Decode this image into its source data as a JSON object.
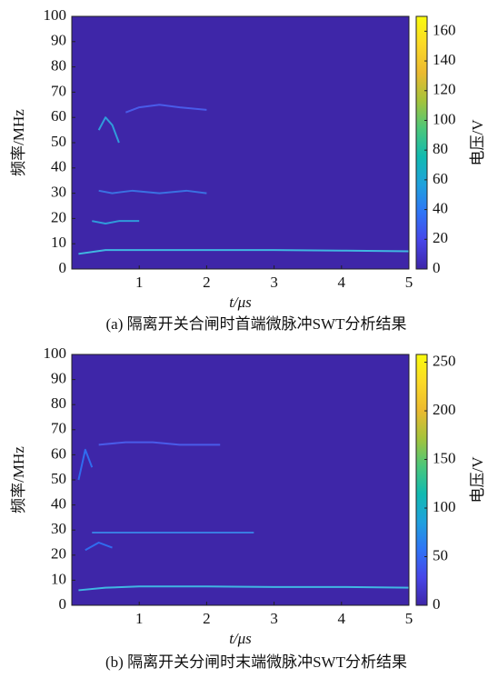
{
  "chart_data": [
    {
      "type": "heatmap",
      "title": "(a) 隔离开关合闸时首端微脉冲SWT分析结果",
      "xlabel": "t/μs",
      "ylabel": "频率/MHz",
      "colorbar_label": "电压/V",
      "xlim": [
        0,
        5
      ],
      "ylim": [
        0,
        100
      ],
      "xticks": [
        1,
        2,
        3,
        4,
        5
      ],
      "yticks": [
        0,
        10,
        20,
        30,
        40,
        50,
        60,
        70,
        80,
        90,
        100
      ],
      "clim": [
        0,
        170
      ],
      "cticks": [
        0,
        20,
        40,
        60,
        80,
        100,
        120,
        140,
        160
      ],
      "colormap": [
        "#3e26a8",
        "#4745e8",
        "#2f74f6",
        "#1fa1dd",
        "#11bab0",
        "#4bc77a",
        "#a5c33b",
        "#ecba30",
        "#fbd927",
        "#f9fb0e"
      ],
      "ridges": [
        {
          "x": [
            0.1,
            0.5,
            1,
            2,
            3,
            4,
            5
          ],
          "values": [
            6,
            7.5,
            7.5,
            7.5,
            7.5,
            7.3,
            7
          ],
          "color": "#40c8e8"
        },
        {
          "x": [
            0.3,
            0.5,
            0.7,
            1.0
          ],
          "values": [
            19,
            18,
            19,
            19
          ],
          "color": "#2fa8e0"
        },
        {
          "x": [
            0.4,
            0.6,
            0.9,
            1.3,
            1.7,
            2.0
          ],
          "values": [
            31,
            30,
            31,
            30,
            31,
            30
          ],
          "color": "#3a7ae8"
        },
        {
          "x": [
            0.4,
            0.5,
            0.6,
            0.7
          ],
          "values": [
            55,
            60,
            57,
            50
          ],
          "color": "#2fa8e0"
        },
        {
          "x": [
            0.8,
            1.0,
            1.3,
            1.6,
            2.0
          ],
          "values": [
            62,
            64,
            65,
            64,
            63
          ],
          "color": "#4a62f0"
        }
      ]
    },
    {
      "type": "heatmap",
      "title": "(b) 隔离开关分闸时末端微脉冲SWT分析结果",
      "xlabel": "t/μs",
      "ylabel": "频率/MHz",
      "colorbar_label": "电压/V",
      "xlim": [
        0,
        5
      ],
      "ylim": [
        0,
        100
      ],
      "xticks": [
        1,
        2,
        3,
        4,
        5
      ],
      "yticks": [
        0,
        10,
        20,
        30,
        40,
        50,
        60,
        70,
        80,
        90,
        100
      ],
      "clim": [
        0,
        258
      ],
      "cticks": [
        0,
        50,
        100,
        150,
        200,
        250
      ],
      "colormap": [
        "#3e26a8",
        "#4745e8",
        "#2f74f6",
        "#1fa1dd",
        "#11bab0",
        "#4bc77a",
        "#a5c33b",
        "#ecba30",
        "#fbd927",
        "#f9fb0e"
      ],
      "ridges": [
        {
          "x": [
            0.1,
            0.5,
            1,
            2,
            3,
            4,
            5
          ],
          "values": [
            6,
            7,
            7.5,
            7.5,
            7.3,
            7.3,
            7
          ],
          "color": "#40c8e8"
        },
        {
          "x": [
            0.3,
            0.6,
            1.0,
            1.5,
            2.0,
            2.7
          ],
          "values": [
            29,
            29,
            29,
            29,
            29,
            29
          ],
          "color": "#3a86e8"
        },
        {
          "x": [
            0.2,
            0.4,
            0.6
          ],
          "values": [
            22,
            25,
            23
          ],
          "color": "#2f74f6"
        },
        {
          "x": [
            0.1,
            0.2,
            0.3
          ],
          "values": [
            50,
            62,
            55
          ],
          "color": "#2f74f6"
        },
        {
          "x": [
            0.4,
            0.8,
            1.2,
            1.6,
            2.2
          ],
          "values": [
            64,
            65,
            65,
            64,
            64
          ],
          "color": "#4a62f0"
        }
      ]
    }
  ]
}
